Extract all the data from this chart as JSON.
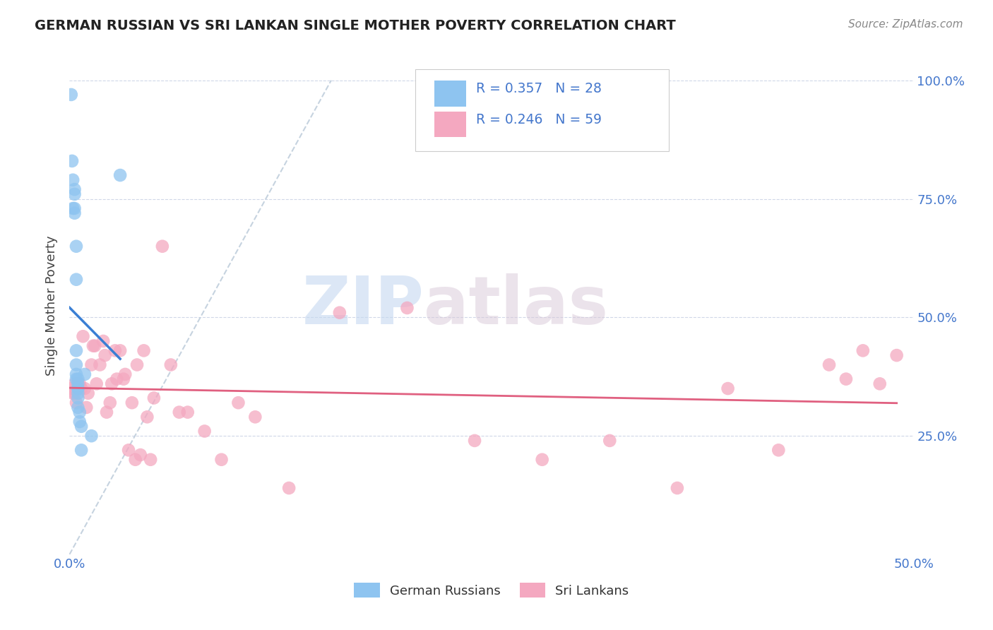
{
  "title": "GERMAN RUSSIAN VS SRI LANKAN SINGLE MOTHER POVERTY CORRELATION CHART",
  "source": "Source: ZipAtlas.com",
  "ylabel": "Single Mother Poverty",
  "legend_label_1": "German Russians",
  "legend_label_2": "Sri Lankans",
  "legend_R1": "R = 0.357",
  "legend_N1": "N = 28",
  "legend_R2": "R = 0.246",
  "legend_N2": "N = 59",
  "watermark_zip": "ZIP",
  "watermark_atlas": "atlas",
  "color_blue": "#8ec4f0",
  "color_pink": "#f4a8c0",
  "color_blue_line": "#3a7fd4",
  "color_pink_line": "#e06080",
  "color_gray_dash": "#b8c8d8",
  "color_text_blue": "#4477cc",
  "xlim": [
    0.0,
    0.5
  ],
  "ylim": [
    0.0,
    1.05
  ],
  "german_russian_x": [
    0.001,
    0.0015,
    0.002,
    0.002,
    0.003,
    0.003,
    0.003,
    0.003,
    0.004,
    0.004,
    0.004,
    0.004,
    0.004,
    0.004,
    0.005,
    0.005,
    0.005,
    0.005,
    0.005,
    0.005,
    0.005,
    0.006,
    0.006,
    0.007,
    0.007,
    0.009,
    0.013,
    0.03
  ],
  "german_russian_y": [
    0.97,
    0.83,
    0.79,
    0.73,
    0.77,
    0.76,
    0.73,
    0.72,
    0.65,
    0.58,
    0.43,
    0.4,
    0.38,
    0.37,
    0.37,
    0.36,
    0.35,
    0.35,
    0.34,
    0.33,
    0.31,
    0.3,
    0.28,
    0.27,
    0.22,
    0.38,
    0.25,
    0.8
  ],
  "sri_lankan_x": [
    0.001,
    0.002,
    0.003,
    0.003,
    0.004,
    0.005,
    0.005,
    0.006,
    0.007,
    0.008,
    0.009,
    0.01,
    0.011,
    0.013,
    0.014,
    0.015,
    0.016,
    0.018,
    0.02,
    0.021,
    0.022,
    0.024,
    0.025,
    0.027,
    0.028,
    0.03,
    0.032,
    0.033,
    0.035,
    0.037,
    0.039,
    0.04,
    0.042,
    0.044,
    0.046,
    0.048,
    0.05,
    0.055,
    0.06,
    0.065,
    0.07,
    0.08,
    0.09,
    0.1,
    0.11,
    0.13,
    0.16,
    0.2,
    0.24,
    0.28,
    0.32,
    0.36,
    0.39,
    0.42,
    0.45,
    0.46,
    0.47,
    0.48,
    0.49
  ],
  "sri_lankan_y": [
    0.35,
    0.34,
    0.34,
    0.36,
    0.32,
    0.35,
    0.36,
    0.36,
    0.35,
    0.46,
    0.35,
    0.31,
    0.34,
    0.4,
    0.44,
    0.44,
    0.36,
    0.4,
    0.45,
    0.42,
    0.3,
    0.32,
    0.36,
    0.43,
    0.37,
    0.43,
    0.37,
    0.38,
    0.22,
    0.32,
    0.2,
    0.4,
    0.21,
    0.43,
    0.29,
    0.2,
    0.33,
    0.65,
    0.4,
    0.3,
    0.3,
    0.26,
    0.2,
    0.32,
    0.29,
    0.14,
    0.51,
    0.52,
    0.24,
    0.2,
    0.24,
    0.14,
    0.35,
    0.22,
    0.4,
    0.37,
    0.43,
    0.36,
    0.42
  ]
}
